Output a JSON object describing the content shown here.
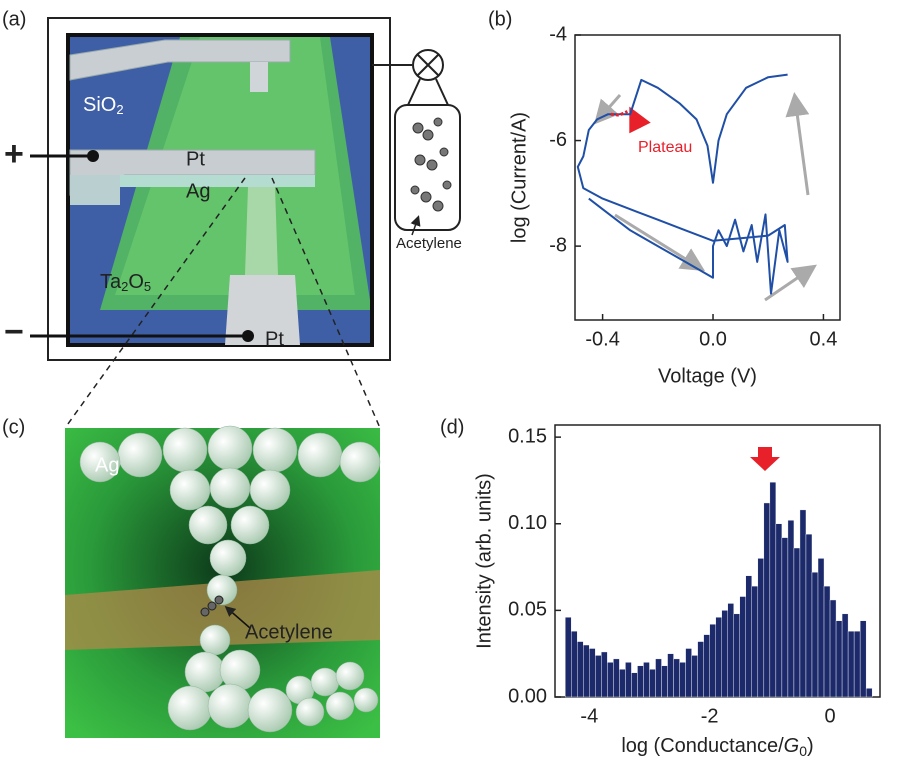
{
  "panel_labels": [
    "(a)",
    "(b)",
    "(c)",
    "(d)"
  ],
  "device_diagram": {
    "substrate": {
      "text": "SiO",
      "sub": "2"
    },
    "top_electrode": "Pt",
    "bottom_electrode": "Ag",
    "layer": {
      "t1": "Ta",
      "s1": "2",
      "t2": "O",
      "s2": "5"
    },
    "lower_electrode": "Pt",
    "plus": "+",
    "minus": "−",
    "molecule": "Acetylene"
  },
  "junction_diagram": {
    "electrode": "Ag",
    "molecule": "Acetylene"
  },
  "chart_data": [
    {
      "type": "line",
      "x_label": "Voltage (V)",
      "y_label": "log (Current/A)",
      "xlim": [
        -0.5,
        0.46
      ],
      "ylim": [
        -9.4,
        -4
      ],
      "xticks": [
        -0.4,
        {
          "value": 0,
          "label": "0.0"
        },
        0.4
      ],
      "yticks": [
        -4,
        -6,
        -8
      ],
      "series": [
        {
          "color": "#1f4fa6",
          "x": [
            0.27,
            0.2,
            0.12,
            0.05,
            0.02,
            0.0,
            -0.02,
            -0.06,
            -0.12,
            -0.2,
            -0.26,
            -0.3,
            -0.38,
            -0.42,
            -0.45,
            -0.47,
            -0.49,
            -0.47,
            -0.4,
            -0.3,
            -0.2,
            -0.1,
            0.0,
            0.1,
            0.2,
            0.26,
            0.27,
            0.24,
            0.21,
            0.19,
            0.16,
            0.14,
            0.11,
            0.08,
            0.05,
            0.02,
            0.0,
            0.0,
            -0.1,
            -0.2,
            -0.3,
            -0.4,
            -0.45
          ],
          "values": [
            -4.75,
            -4.8,
            -5.0,
            -5.5,
            -6.0,
            -6.8,
            -6.1,
            -5.6,
            -5.3,
            -5.0,
            -4.85,
            -5.5,
            -5.5,
            -5.6,
            -5.8,
            -6.3,
            -6.5,
            -6.9,
            -7.1,
            -7.3,
            -7.5,
            -7.7,
            -7.9,
            -7.85,
            -7.8,
            -7.6,
            -8.3,
            -7.7,
            -8.9,
            -7.4,
            -8.3,
            -7.6,
            -8.1,
            -7.5,
            -8.0,
            -7.7,
            -8.0,
            -8.6,
            -8.3,
            -8.0,
            -7.7,
            -7.3,
            -7.1
          ]
        },
        {
          "color": "#e8202a",
          "x": [
            -0.37,
            -0.34,
            -0.31
          ],
          "values": [
            -5.5,
            -5.52,
            -5.45
          ]
        }
      ],
      "annotation": {
        "text": "Plateau",
        "color": "#e8202a"
      }
    },
    {
      "type": "histogram",
      "x_label": {
        "prefix": "log (Conductance/",
        "symbol": "G",
        "subscript": "0",
        "suffix": ")"
      },
      "y_label": "Intensity (arb. units)",
      "xlim": [
        -4.57,
        0.83
      ],
      "ylim": [
        0,
        0.157
      ],
      "xticks": [
        -4,
        -2,
        0
      ],
      "yticks": [
        {
          "value": 0,
          "label": "0.00"
        },
        {
          "value": 0.05,
          "label": "0.05"
        },
        {
          "value": 0.1,
          "label": "0.10"
        },
        {
          "value": 0.15,
          "label": "0.15"
        }
      ],
      "color": "#1c2a6b",
      "peak_marker_color": "#e8202a",
      "bins": [
        -4.4,
        -4.3,
        -4.2,
        -4.1,
        -4.0,
        -3.9,
        -3.8,
        -3.7,
        -3.6,
        -3.5,
        -3.4,
        -3.3,
        -3.2,
        -3.1,
        -3.0,
        -2.9,
        -2.8,
        -2.7,
        -2.6,
        -2.5,
        -2.4,
        -2.3,
        -2.2,
        -2.1,
        -2.0,
        -1.9,
        -1.8,
        -1.7,
        -1.6,
        -1.5,
        -1.4,
        -1.3,
        -1.2,
        -1.1,
        -1.0,
        -0.9,
        -0.8,
        -0.7,
        -0.6,
        -0.5,
        -0.4,
        -0.3,
        -0.2,
        -0.1,
        0.0,
        0.1,
        0.2,
        0.3,
        0.4,
        0.5,
        0.6,
        0.7
      ],
      "values": [
        0.046,
        0.038,
        0.032,
        0.03,
        0.028,
        0.024,
        0.026,
        0.02,
        0.022,
        0.016,
        0.02,
        0.014,
        0.018,
        0.02,
        0.016,
        0.022,
        0.018,
        0.025,
        0.022,
        0.02,
        0.028,
        0.024,
        0.032,
        0.036,
        0.042,
        0.046,
        0.05,
        0.054,
        0.048,
        0.058,
        0.07,
        0.064,
        0.08,
        0.112,
        0.124,
        0.1,
        0.092,
        0.102,
        0.086,
        0.108,
        0.094,
        0.072,
        0.08,
        0.064,
        0.056,
        0.044,
        0.048,
        0.038,
        0.038,
        0.044,
        0.005
      ]
    }
  ]
}
